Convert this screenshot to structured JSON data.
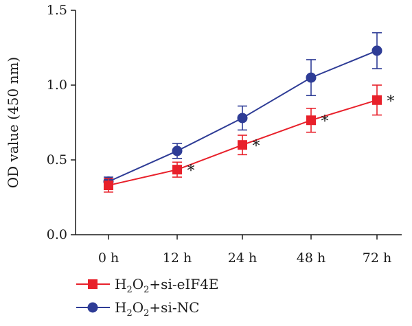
{
  "chart_data": {
    "type": "line",
    "categories": [
      "0 h",
      "12 h",
      "24 h",
      "48 h",
      "72 h"
    ],
    "ylabel": "OD value (450 nm)",
    "ylim": [
      0.0,
      1.5
    ],
    "yticks": [
      "0.0",
      "0.5",
      "1.0",
      "1.5"
    ],
    "grid": false,
    "legend_position": "bottom-left",
    "series": [
      {
        "name_parts": [
          "H",
          "2",
          "O",
          "2",
          "+si-eIF4E"
        ],
        "color": "#e8202a",
        "marker": "square",
        "values": [
          0.33,
          0.435,
          0.6,
          0.765,
          0.9
        ],
        "errors": [
          0.045,
          0.05,
          0.065,
          0.08,
          0.1
        ],
        "significance": [
          "",
          "*",
          "*",
          "*",
          "*"
        ]
      },
      {
        "name_parts": [
          "H",
          "2",
          "O",
          "2",
          "+si-NC"
        ],
        "color": "#2e3c96",
        "marker": "circle",
        "values": [
          0.355,
          0.56,
          0.78,
          1.05,
          1.23
        ],
        "errors": [
          0.03,
          0.05,
          0.08,
          0.12,
          0.12
        ]
      }
    ]
  }
}
